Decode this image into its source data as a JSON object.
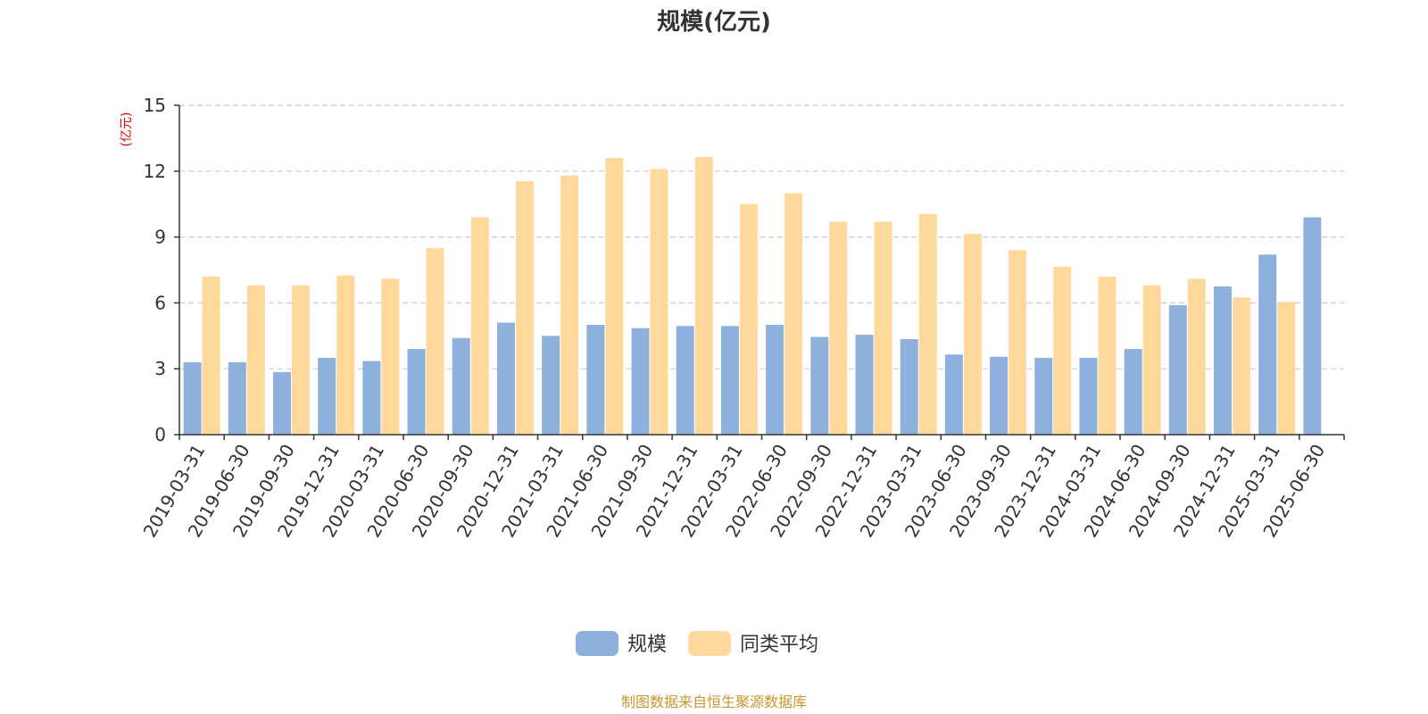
{
  "chart_data": {
    "type": "bar",
    "title": "规模(亿元)",
    "ylabel": "(亿元)",
    "ylim": [
      0,
      15
    ],
    "yticks": [
      0,
      3,
      6,
      9,
      12,
      15
    ],
    "grid": true,
    "legend_position": "bottom",
    "categories": [
      "2019-03-31",
      "2019-06-30",
      "2019-09-30",
      "2019-12-31",
      "2020-03-31",
      "2020-06-30",
      "2020-09-30",
      "2020-12-31",
      "2021-03-31",
      "2021-06-30",
      "2021-09-30",
      "2021-12-31",
      "2022-03-31",
      "2022-06-30",
      "2022-09-30",
      "2022-12-31",
      "2023-03-31",
      "2023-06-30",
      "2023-09-30",
      "2023-12-31",
      "2024-03-31",
      "2024-06-30",
      "2024-09-30",
      "2024-12-31",
      "2025-03-31",
      "2025-06-30"
    ],
    "series": [
      {
        "name": "规模",
        "color": "#8eb0dc",
        "values": [
          3.3,
          3.3,
          2.85,
          3.5,
          3.35,
          3.9,
          4.4,
          5.1,
          4.5,
          5.0,
          4.85,
          4.95,
          4.95,
          5.0,
          4.45,
          4.55,
          4.35,
          3.65,
          3.55,
          3.5,
          3.5,
          3.9,
          5.9,
          6.75,
          8.2,
          9.9
        ]
      },
      {
        "name": "同类平均",
        "color": "#fed99b",
        "values": [
          7.2,
          6.8,
          6.8,
          7.25,
          7.1,
          8.5,
          9.9,
          11.55,
          11.8,
          12.6,
          12.1,
          12.65,
          10.5,
          11.0,
          9.7,
          9.7,
          10.05,
          9.15,
          8.4,
          7.65,
          7.2,
          6.8,
          7.1,
          6.25,
          6.05,
          null
        ]
      }
    ]
  },
  "footer": "制图数据来自恒生聚源数据库"
}
